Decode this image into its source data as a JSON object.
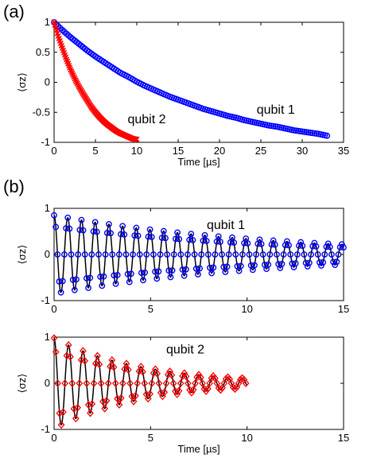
{
  "panel_labels": {
    "a": "(a)",
    "b": "(b)"
  },
  "colors": {
    "qubit1": "#0000ff",
    "qubit2": "#ff0000",
    "fit": "#000000",
    "axes": "#000000"
  },
  "chart_data": [
    {
      "id": "a",
      "type": "scatter",
      "xlabel": "Time [µs]",
      "ylabel": "⟨σz⟩",
      "xlim": [
        0,
        35
      ],
      "ylim": [
        -1,
        1
      ],
      "xticks": [
        0,
        5,
        10,
        15,
        20,
        25,
        30,
        35
      ],
      "yticks": [
        -1,
        -0.5,
        0,
        0.5,
        1
      ],
      "yticklabels": [
        "-1",
        "-0.5",
        "0",
        "0.5",
        "1"
      ],
      "grid": false,
      "series": [
        {
          "name": "qubit 1",
          "marker": "circle",
          "color": "#0000ff",
          "x": [
            0,
            1,
            2,
            3,
            4,
            5,
            6,
            7,
            8,
            9,
            10,
            11,
            12,
            13,
            14,
            15,
            16,
            17,
            18,
            19,
            20,
            21,
            22,
            23,
            24,
            25,
            26,
            27,
            28,
            29,
            30,
            31,
            32,
            33
          ],
          "y": [
            1,
            0.87,
            0.75,
            0.64,
            0.53,
            0.43,
            0.34,
            0.25,
            0.16,
            0.09,
            0.01,
            -0.06,
            -0.12,
            -0.18,
            -0.24,
            -0.29,
            -0.34,
            -0.39,
            -0.44,
            -0.48,
            -0.52,
            -0.56,
            -0.59,
            -0.63,
            -0.66,
            -0.69,
            -0.72,
            -0.74,
            -0.77,
            -0.8,
            -0.82,
            -0.84,
            -0.86,
            -0.89
          ]
        },
        {
          "name": "qubit 2",
          "marker": "x",
          "color": "#ff0000",
          "x": [
            0,
            0.5,
            1,
            1.5,
            2,
            2.5,
            3,
            3.5,
            4,
            4.5,
            5,
            5.5,
            6,
            6.5,
            7,
            7.5,
            8,
            8.5,
            9,
            9.5,
            10
          ],
          "y": [
            1,
            0.77,
            0.57,
            0.38,
            0.21,
            0.06,
            -0.07,
            -0.19,
            -0.3,
            -0.41,
            -0.5,
            -0.58,
            -0.65,
            -0.71,
            -0.76,
            -0.81,
            -0.85,
            -0.88,
            -0.91,
            -0.94,
            -0.95
          ]
        }
      ],
      "annotations": [
        {
          "text": "qubit 2",
          "at": [
            11.2,
            -0.68
          ]
        },
        {
          "text": "qubit 1",
          "at": [
            26.8,
            -0.52
          ]
        }
      ]
    },
    {
      "id": "b1",
      "type": "scatter",
      "xlabel": "",
      "ylabel": "⟨σz⟩",
      "xlim": [
        0,
        15
      ],
      "ylim": [
        -1,
        1
      ],
      "xticks": [
        0,
        5,
        10,
        15
      ],
      "yticks": [
        -1,
        0,
        1
      ],
      "grid": false,
      "oscillation": {
        "amplitude": 0.85,
        "period_us": 0.71,
        "decay_us": 11,
        "t_end": 15
      },
      "series": [
        {
          "name": "qubit 1",
          "marker": "circle",
          "color": "#0000ff"
        }
      ],
      "annotations": [
        {
          "text": "qubit 1",
          "at": [
            8.9,
            0.55
          ]
        }
      ]
    },
    {
      "id": "b2",
      "type": "scatter",
      "xlabel": "Time [µs]",
      "ylabel": "⟨σz⟩",
      "xlim": [
        0,
        15
      ],
      "ylim": [
        -1,
        1
      ],
      "xticks": [
        0,
        5,
        10,
        15
      ],
      "yticks": [
        -1,
        0,
        1
      ],
      "grid": false,
      "oscillation": {
        "amplitude": 0.98,
        "period_us": 0.75,
        "decay_us": 4.5,
        "t_end": 10
      },
      "series": [
        {
          "name": "qubit 2",
          "marker": "diamond",
          "color": "#ff0000"
        }
      ],
      "annotations": [
        {
          "text": "qubit 2",
          "at": [
            6.8,
            0.65
          ]
        }
      ]
    }
  ]
}
